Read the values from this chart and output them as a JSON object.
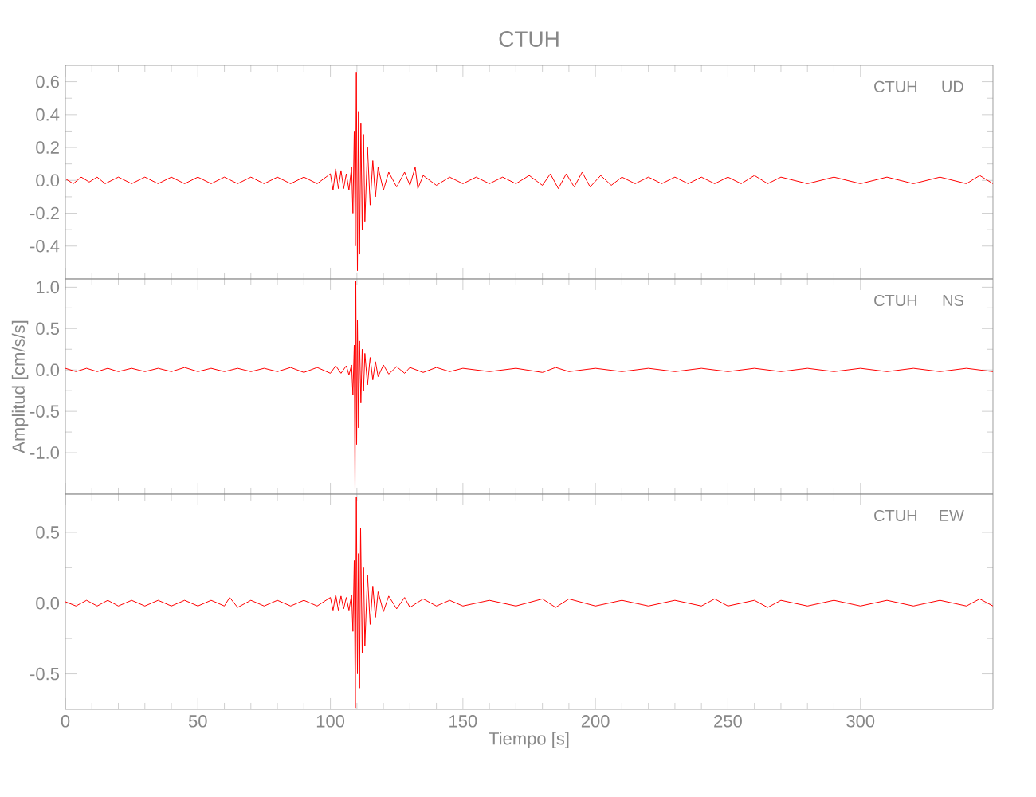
{
  "chart_data": [
    {
      "type": "line",
      "title": "CTUH",
      "annotations": [
        "CTUH",
        "UD"
      ],
      "xlim": [
        0,
        350
      ],
      "xticks": [
        0,
        50,
        100,
        150,
        200,
        250,
        300
      ],
      "ylim": [
        -0.6,
        0.7
      ],
      "yticks": [
        -0.4,
        -0.2,
        {
          "value": 0,
          "label": "0.0"
        },
        0.2,
        0.4,
        0.6
      ],
      "tick_labels": "y",
      "series": [
        {
          "color": "#ff0000",
          "x": [
            0,
            3,
            6,
            9,
            12,
            15,
            20,
            25,
            30,
            35,
            40,
            45,
            50,
            55,
            60,
            65,
            70,
            75,
            80,
            85,
            90,
            95,
            100,
            101,
            102,
            103,
            104,
            105,
            106,
            107,
            108,
            108.5,
            109,
            109.4,
            109.8,
            110.2,
            110.6,
            111,
            111.5,
            112,
            112.5,
            113,
            114,
            115,
            116,
            117,
            118,
            120,
            122,
            125,
            128,
            130,
            132,
            133,
            135,
            140,
            145,
            150,
            155,
            160,
            165,
            170,
            175,
            180,
            183,
            186,
            189,
            192,
            195,
            198,
            202,
            206,
            210,
            215,
            220,
            225,
            230,
            235,
            240,
            245,
            250,
            255,
            260,
            265,
            270,
            280,
            290,
            300,
            310,
            320,
            330,
            340,
            345,
            350
          ],
          "values": [
            0.01,
            -0.02,
            0.02,
            -0.01,
            0.02,
            -0.02,
            0.02,
            -0.02,
            0.02,
            -0.02,
            0.02,
            -0.02,
            0.02,
            -0.02,
            0.02,
            -0.02,
            0.02,
            -0.02,
            0.02,
            -0.02,
            0.02,
            -0.02,
            0.04,
            -0.06,
            0.07,
            -0.05,
            0.06,
            -0.05,
            0.04,
            -0.06,
            0.08,
            -0.2,
            0.3,
            -0.4,
            0.66,
            -0.55,
            0.42,
            -0.45,
            0.35,
            -0.3,
            0.28,
            -0.25,
            0.2,
            -0.15,
            0.12,
            -0.1,
            0.08,
            -0.06,
            0.05,
            -0.04,
            0.05,
            -0.03,
            0.08,
            -0.05,
            0.03,
            -0.03,
            0.02,
            -0.02,
            0.02,
            -0.02,
            0.02,
            -0.02,
            0.03,
            -0.03,
            0.04,
            -0.05,
            0.04,
            -0.04,
            0.05,
            -0.04,
            0.03,
            -0.03,
            0.02,
            -0.02,
            0.02,
            -0.02,
            0.02,
            -0.02,
            0.02,
            -0.02,
            0.02,
            -0.02,
            0.03,
            -0.02,
            0.02,
            -0.02,
            0.02,
            -0.02,
            0.02,
            -0.02,
            0.02,
            -0.02,
            0.03,
            -0.02
          ]
        }
      ]
    },
    {
      "type": "line",
      "ylabel": "Amplitud [cm/s/s]",
      "annotations": [
        "CTUH",
        "NS"
      ],
      "xlim": [
        0,
        350
      ],
      "xticks": [
        0,
        50,
        100,
        150,
        200,
        250,
        300
      ],
      "ylim": [
        -1.5,
        1.1
      ],
      "yticks": [
        {
          "value": -1,
          "label": "-1.0"
        },
        -0.5,
        {
          "value": 0,
          "label": "0.0"
        },
        0.5,
        {
          "value": 1,
          "label": "1.0"
        }
      ],
      "tick_labels": "y",
      "series": [
        {
          "color": "#ff0000",
          "x": [
            0,
            4,
            8,
            12,
            16,
            20,
            25,
            30,
            35,
            40,
            45,
            50,
            55,
            60,
            65,
            70,
            75,
            80,
            85,
            90,
            95,
            100,
            102,
            104,
            106,
            107,
            108,
            108.5,
            109,
            109.3,
            109.6,
            109.9,
            110.2,
            110.6,
            111,
            111.5,
            112,
            112.5,
            113,
            114,
            115,
            116,
            117,
            118,
            120,
            122,
            125,
            128,
            130,
            135,
            140,
            145,
            150,
            160,
            170,
            180,
            185,
            190,
            200,
            210,
            220,
            230,
            240,
            250,
            260,
            270,
            280,
            290,
            300,
            310,
            320,
            330,
            340,
            350
          ],
          "values": [
            0.02,
            -0.02,
            0.02,
            -0.02,
            0.02,
            -0.02,
            0.02,
            -0.02,
            0.02,
            -0.02,
            0.03,
            -0.02,
            0.02,
            -0.02,
            0.02,
            -0.02,
            0.02,
            -0.02,
            0.03,
            -0.03,
            0.03,
            -0.04,
            0.05,
            -0.04,
            0.05,
            -0.06,
            0.06,
            -0.3,
            0.3,
            -1.45,
            1.07,
            -0.9,
            0.6,
            -0.7,
            0.35,
            -0.4,
            0.25,
            -0.25,
            0.2,
            -0.18,
            0.15,
            -0.12,
            0.1,
            -0.08,
            0.06,
            -0.05,
            0.04,
            -0.04,
            0.03,
            -0.03,
            0.03,
            -0.02,
            0.02,
            -0.02,
            0.02,
            -0.03,
            0.03,
            -0.02,
            0.02,
            -0.02,
            0.02,
            -0.02,
            0.02,
            -0.02,
            0.02,
            -0.02,
            0.02,
            -0.02,
            0.02,
            -0.02,
            0.02,
            -0.02,
            0.02,
            -0.02
          ]
        }
      ]
    },
    {
      "type": "line",
      "xlabel": "Tiempo [s]",
      "annotations": [
        "CTUH",
        "EW"
      ],
      "xlim": [
        0,
        350
      ],
      "xticks": [
        0,
        50,
        100,
        150,
        200,
        250,
        300
      ],
      "ylim": [
        -0.75,
        0.77
      ],
      "yticks": [
        -0.5,
        {
          "value": 0,
          "label": "0.0"
        },
        0.5
      ],
      "series": [
        {
          "color": "#ff0000",
          "x": [
            0,
            4,
            8,
            12,
            16,
            20,
            25,
            30,
            35,
            40,
            45,
            50,
            55,
            60,
            62,
            65,
            70,
            75,
            80,
            85,
            90,
            95,
            100,
            101,
            102,
            103,
            104,
            105,
            106,
            107,
            108,
            108.5,
            109,
            109.4,
            109.8,
            110.2,
            110.6,
            111,
            111.4,
            112,
            112.5,
            113,
            114,
            115,
            116,
            117,
            118,
            120,
            122,
            125,
            128,
            130,
            135,
            140,
            145,
            150,
            160,
            170,
            180,
            185,
            190,
            200,
            210,
            220,
            230,
            240,
            245,
            250,
            260,
            265,
            270,
            280,
            290,
            300,
            310,
            320,
            330,
            340,
            345,
            350
          ],
          "values": [
            0.01,
            -0.02,
            0.02,
            -0.02,
            0.02,
            -0.02,
            0.02,
            -0.02,
            0.02,
            -0.02,
            0.02,
            -0.02,
            0.02,
            -0.02,
            0.04,
            -0.03,
            0.02,
            -0.02,
            0.02,
            -0.02,
            0.02,
            -0.02,
            0.04,
            -0.05,
            0.06,
            -0.05,
            0.05,
            -0.04,
            0.04,
            -0.05,
            0.06,
            -0.2,
            0.3,
            -0.74,
            0.75,
            -0.5,
            0.35,
            -0.6,
            0.53,
            -0.35,
            0.25,
            -0.3,
            0.2,
            -0.15,
            0.12,
            -0.1,
            0.08,
            -0.06,
            0.05,
            -0.04,
            0.04,
            -0.03,
            0.03,
            -0.02,
            0.02,
            -0.02,
            0.02,
            -0.02,
            0.03,
            -0.03,
            0.03,
            -0.02,
            0.02,
            -0.02,
            0.02,
            -0.02,
            0.03,
            -0.02,
            0.02,
            -0.03,
            0.02,
            -0.02,
            0.02,
            -0.02,
            0.02,
            -0.02,
            0.02,
            -0.02,
            0.03,
            -0.02
          ]
        }
      ]
    }
  ]
}
